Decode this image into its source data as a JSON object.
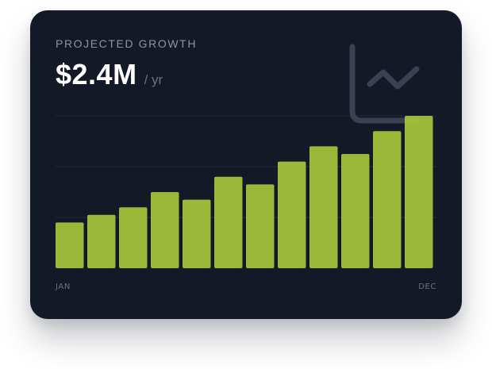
{
  "card": {
    "kicker": "PROJECTED GROWTH",
    "value": "$2.4M",
    "unit": "/ yr",
    "icon": "trending-chart-icon"
  },
  "colors": {
    "background": "#141927",
    "bar": "#a6c13a",
    "grid": "#242a3a",
    "icon": "#3a4153",
    "muted_text": "#8d93a3"
  },
  "chart_data": {
    "type": "bar",
    "title": "",
    "xlabel": "",
    "ylabel": "",
    "categories": [
      "JAN",
      "",
      "",
      "",
      "",
      "",
      "",
      "",
      "",
      "",
      "",
      "DEC"
    ],
    "values": [
      30,
      35,
      40,
      50,
      45,
      60,
      55,
      70,
      80,
      75,
      90,
      100
    ],
    "ylim": [
      0,
      100
    ],
    "grid": true,
    "x_tick_labels_shown": [
      "JAN",
      "DEC"
    ]
  }
}
